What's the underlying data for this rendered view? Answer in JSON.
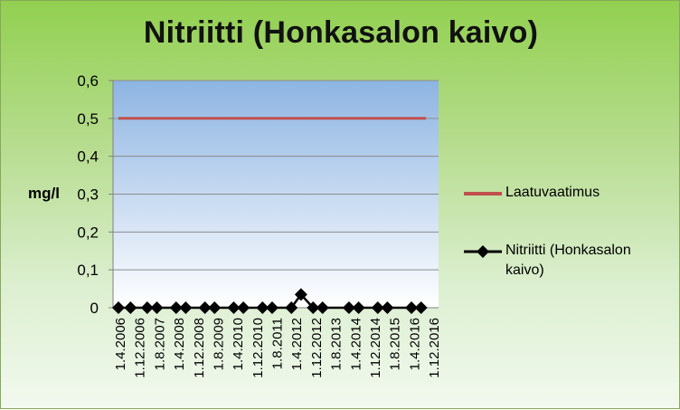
{
  "chart_data": {
    "type": "line",
    "title": "Nitriitti (Honkasalon kaivo)",
    "ylabel": "mg/l",
    "xlabel": "",
    "ylim": [
      0,
      0.6
    ],
    "yticks": [
      "0",
      "0,1",
      "0,2",
      "0,3",
      "0,4",
      "0,5",
      "0,6"
    ],
    "ytick_values": [
      0,
      0.1,
      0.2,
      0.3,
      0.4,
      0.5,
      0.6
    ],
    "grid": true,
    "legend_position": "right",
    "x_tick_labels": [
      "1.4.2006",
      "1.12.2006",
      "1.8.2007",
      "1.4.2008",
      "1.12.2008",
      "1.8.2009",
      "1.4.2010",
      "1.12.2010",
      "1.8.2011",
      "1.4.2012",
      "1.12.2012",
      "1.8.2013",
      "1.4.2014",
      "1.12.2014",
      "1.8.2015",
      "1.4.2016",
      "1.12.2016"
    ],
    "xlim": [
      "2006-04-01",
      "2016-12-01"
    ],
    "series": [
      {
        "name": "Laatuvaatimus",
        "color": "#c0504d",
        "marker": "none",
        "points": [
          {
            "x": "2006-04-01",
            "y": 0.5
          },
          {
            "x": "2016-12-01",
            "y": 0.5
          }
        ]
      },
      {
        "name": "Nitriitti (Honkasalon kaivo)",
        "color": "#000000",
        "marker": "diamond",
        "points": [
          {
            "x": "2006-04-01",
            "y": 0
          },
          {
            "x": "2006-09-01",
            "y": 0
          },
          {
            "x": "2007-04-01",
            "y": 0
          },
          {
            "x": "2007-08-01",
            "y": 0
          },
          {
            "x": "2008-04-01",
            "y": 0
          },
          {
            "x": "2008-08-01",
            "y": 0
          },
          {
            "x": "2009-04-01",
            "y": 0
          },
          {
            "x": "2009-08-01",
            "y": 0
          },
          {
            "x": "2010-04-01",
            "y": 0
          },
          {
            "x": "2010-08-01",
            "y": 0
          },
          {
            "x": "2011-04-01",
            "y": 0
          },
          {
            "x": "2011-08-01",
            "y": 0
          },
          {
            "x": "2012-04-01",
            "y": 0
          },
          {
            "x": "2012-08-01",
            "y": 0.035
          },
          {
            "x": "2013-01-01",
            "y": 0
          },
          {
            "x": "2013-05-01",
            "y": 0
          },
          {
            "x": "2014-04-01",
            "y": 0
          },
          {
            "x": "2014-08-01",
            "y": 0
          },
          {
            "x": "2015-04-01",
            "y": 0
          },
          {
            "x": "2015-08-01",
            "y": 0
          },
          {
            "x": "2016-06-01",
            "y": 0
          },
          {
            "x": "2016-10-01",
            "y": 0
          }
        ]
      }
    ]
  }
}
